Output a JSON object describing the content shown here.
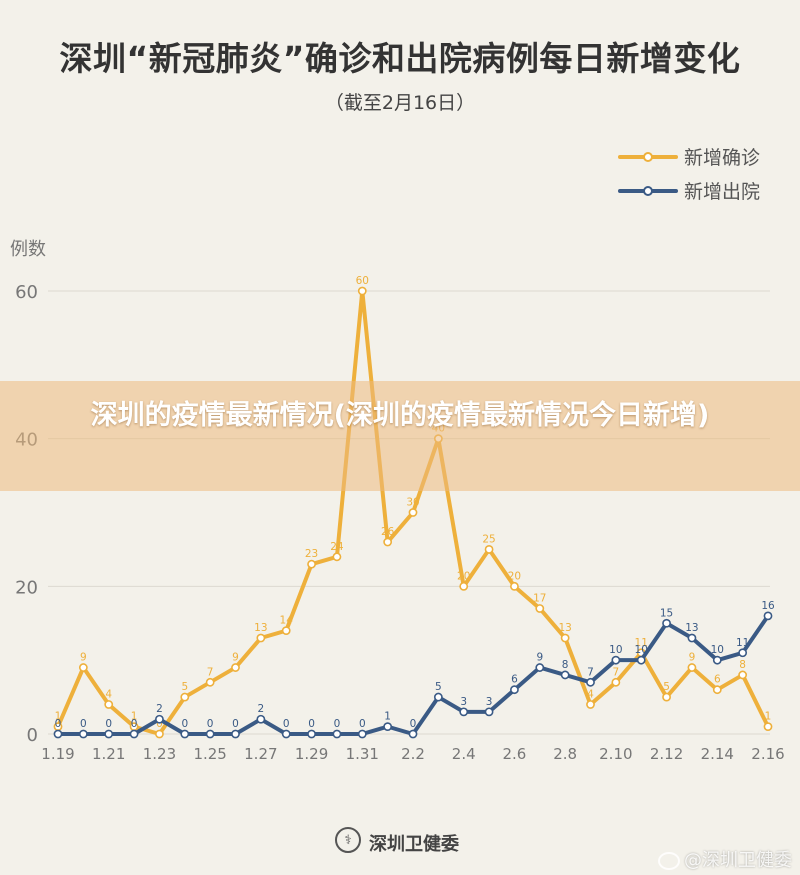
{
  "header": {
    "title": "深圳“新冠肺炎”确诊和出院病例每日新增变化",
    "subtitle": "（截至2月16日）"
  },
  "banner": {
    "text": "深圳的疫情最新情况(深圳的疫情最新情况今日新增)"
  },
  "footer": {
    "source": "深圳卫健委",
    "watermark": "@深圳卫健委"
  },
  "colors": {
    "confirmed": "#eeb03b",
    "discharged": "#3a5a85",
    "grid": "#dcd9d0",
    "axis_text": "#777777"
  },
  "chart_data": {
    "type": "line",
    "title": "深圳“新冠肺炎”确诊和出院病例每日新增变化",
    "subtitle": "（截至2月16日）",
    "ylabel": "例数",
    "xlabel": "",
    "ylim": [
      0,
      60
    ],
    "yticks": [
      0,
      20,
      40,
      60
    ],
    "grid": true,
    "legend_position": "top-right",
    "x": [
      "1.19",
      "1.20",
      "1.21",
      "1.22",
      "1.23",
      "1.24",
      "1.25",
      "1.26",
      "1.27",
      "1.28",
      "1.29",
      "1.30",
      "1.31",
      "2.1",
      "2.2",
      "2.3",
      "2.4",
      "2.5",
      "2.6",
      "2.7",
      "2.8",
      "2.9",
      "2.10",
      "2.11",
      "2.12",
      "2.13",
      "2.14",
      "2.15",
      "2.16"
    ],
    "xtick_labels": [
      "1.19",
      "1.21",
      "1.23",
      "1.25",
      "1.27",
      "1.29",
      "1.31",
      "2.2",
      "2.4",
      "2.6",
      "2.8",
      "2.10",
      "2.12",
      "2.14",
      "2.16"
    ],
    "series": [
      {
        "name": "新增确诊",
        "values": [
          1,
          9,
          4,
          1,
          0,
          5,
          7,
          9,
          13,
          14,
          23,
          24,
          60,
          26,
          30,
          40,
          20,
          25,
          20,
          17,
          13,
          4,
          7,
          11,
          5,
          9,
          6,
          8,
          1
        ]
      },
      {
        "name": "新增出院",
        "values": [
          0,
          0,
          0,
          0,
          2,
          0,
          0,
          0,
          2,
          0,
          0,
          0,
          0,
          1,
          0,
          5,
          3,
          3,
          6,
          9,
          8,
          7,
          10,
          10,
          15,
          13,
          10,
          11,
          16
        ]
      }
    ]
  }
}
